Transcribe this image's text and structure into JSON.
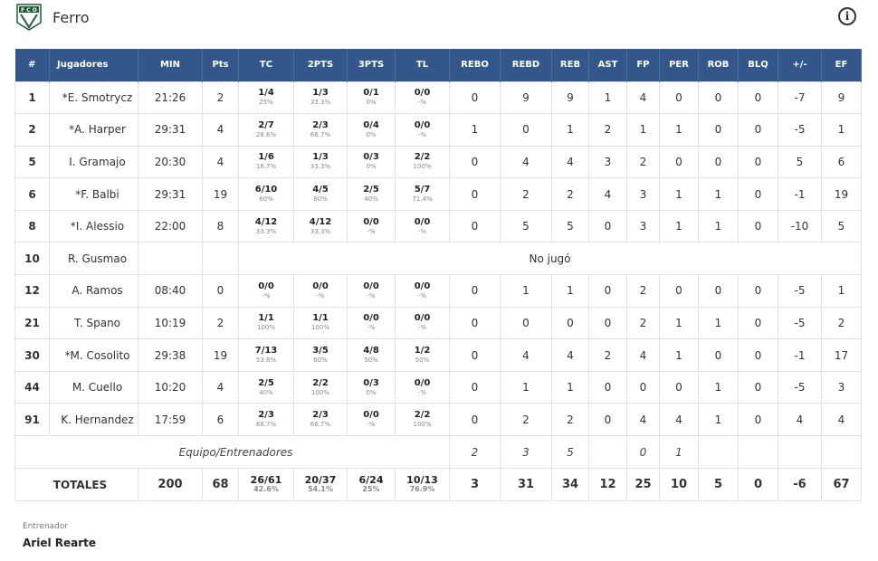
{
  "team": {
    "name": "Ferro",
    "logo_letters": "F C O",
    "colors": {
      "logo_green": "#1f5a36",
      "header_blue": "#33578a"
    }
  },
  "info_icon": "info-circle-icon",
  "columns": [
    "#",
    "Jugadores",
    "MIN",
    "Pts",
    "TC",
    "2PTS",
    "3PTS",
    "TL",
    "REBO",
    "REBD",
    "REB",
    "AST",
    "FP",
    "PER",
    "ROB",
    "BLQ",
    "+/-",
    "EF"
  ],
  "players": [
    {
      "num": "1",
      "name": "*E. Smotrycz",
      "min": "21:26",
      "pts": "2",
      "tc": "1/4",
      "tc_pct": "25%",
      "p2": "1/3",
      "p2_pct": "33.3%",
      "p3": "0/1",
      "p3_pct": "0%",
      "tl": "0/0",
      "tl_pct": "-%",
      "rebo": "0",
      "rebd": "9",
      "reb": "9",
      "ast": "1",
      "fp": "4",
      "per": "0",
      "rob": "0",
      "blq": "0",
      "pm": "-7",
      "ef": "9"
    },
    {
      "num": "2",
      "name": "*A. Harper",
      "min": "29:31",
      "pts": "4",
      "tc": "2/7",
      "tc_pct": "28.6%",
      "p2": "2/3",
      "p2_pct": "66.7%",
      "p3": "0/4",
      "p3_pct": "0%",
      "tl": "0/0",
      "tl_pct": "-%",
      "rebo": "1",
      "rebd": "0",
      "reb": "1",
      "ast": "2",
      "fp": "1",
      "per": "1",
      "rob": "0",
      "blq": "0",
      "pm": "-5",
      "ef": "1"
    },
    {
      "num": "5",
      "name": "I. Gramajo",
      "min": "20:30",
      "pts": "4",
      "tc": "1/6",
      "tc_pct": "16.7%",
      "p2": "1/3",
      "p2_pct": "33.3%",
      "p3": "0/3",
      "p3_pct": "0%",
      "tl": "2/2",
      "tl_pct": "100%",
      "rebo": "0",
      "rebd": "4",
      "reb": "4",
      "ast": "3",
      "fp": "2",
      "per": "0",
      "rob": "0",
      "blq": "0",
      "pm": "5",
      "ef": "6"
    },
    {
      "num": "6",
      "name": "*F. Balbi",
      "min": "29:31",
      "pts": "19",
      "tc": "6/10",
      "tc_pct": "60%",
      "p2": "4/5",
      "p2_pct": "80%",
      "p3": "2/5",
      "p3_pct": "40%",
      "tl": "5/7",
      "tl_pct": "71.4%",
      "rebo": "0",
      "rebd": "2",
      "reb": "2",
      "ast": "4",
      "fp": "3",
      "per": "1",
      "rob": "1",
      "blq": "0",
      "pm": "-1",
      "ef": "19"
    },
    {
      "num": "8",
      "name": "*I. Alessio",
      "min": "22:00",
      "pts": "8",
      "tc": "4/12",
      "tc_pct": "33.3%",
      "p2": "4/12",
      "p2_pct": "33.3%",
      "p3": "0/0",
      "p3_pct": "-%",
      "tl": "0/0",
      "tl_pct": "-%",
      "rebo": "0",
      "rebd": "5",
      "reb": "5",
      "ast": "0",
      "fp": "3",
      "per": "1",
      "rob": "1",
      "blq": "0",
      "pm": "-10",
      "ef": "5"
    },
    {
      "num": "10",
      "name": "R. Gusmao",
      "dnp": "No jugó"
    },
    {
      "num": "12",
      "name": "A. Ramos",
      "min": "08:40",
      "pts": "0",
      "tc": "0/0",
      "tc_pct": "-%",
      "p2": "0/0",
      "p2_pct": "-%",
      "p3": "0/0",
      "p3_pct": "-%",
      "tl": "0/0",
      "tl_pct": "-%",
      "rebo": "0",
      "rebd": "1",
      "reb": "1",
      "ast": "0",
      "fp": "2",
      "per": "0",
      "rob": "0",
      "blq": "0",
      "pm": "-5",
      "ef": "1"
    },
    {
      "num": "21",
      "name": "T. Spano",
      "min": "10:19",
      "pts": "2",
      "tc": "1/1",
      "tc_pct": "100%",
      "p2": "1/1",
      "p2_pct": "100%",
      "p3": "0/0",
      "p3_pct": "-%",
      "tl": "0/0",
      "tl_pct": "-%",
      "rebo": "0",
      "rebd": "0",
      "reb": "0",
      "ast": "0",
      "fp": "2",
      "per": "1",
      "rob": "1",
      "blq": "0",
      "pm": "-5",
      "ef": "2"
    },
    {
      "num": "30",
      "name": "*M. Cosolito",
      "min": "29:38",
      "pts": "19",
      "tc": "7/13",
      "tc_pct": "53.8%",
      "p2": "3/5",
      "p2_pct": "60%",
      "p3": "4/8",
      "p3_pct": "50%",
      "tl": "1/2",
      "tl_pct": "50%",
      "rebo": "0",
      "rebd": "4",
      "reb": "4",
      "ast": "2",
      "fp": "4",
      "per": "1",
      "rob": "0",
      "blq": "0",
      "pm": "-1",
      "ef": "17"
    },
    {
      "num": "44",
      "name": "M. Cuello",
      "min": "10:20",
      "pts": "4",
      "tc": "2/5",
      "tc_pct": "40%",
      "p2": "2/2",
      "p2_pct": "100%",
      "p3": "0/3",
      "p3_pct": "0%",
      "tl": "0/0",
      "tl_pct": "-%",
      "rebo": "0",
      "rebd": "1",
      "reb": "1",
      "ast": "0",
      "fp": "0",
      "per": "0",
      "rob": "1",
      "blq": "0",
      "pm": "-5",
      "ef": "3"
    },
    {
      "num": "91",
      "name": "K. Hernandez",
      "min": "17:59",
      "pts": "6",
      "tc": "2/3",
      "tc_pct": "66.7%",
      "p2": "2/3",
      "p2_pct": "66.7%",
      "p3": "0/0",
      "p3_pct": "-%",
      "tl": "2/2",
      "tl_pct": "100%",
      "rebo": "0",
      "rebd": "2",
      "reb": "2",
      "ast": "0",
      "fp": "4",
      "per": "4",
      "rob": "1",
      "blq": "0",
      "pm": "4",
      "ef": "4"
    }
  ],
  "team_row": {
    "label": "Equipo/Entrenadores",
    "rebo": "2",
    "rebd": "3",
    "reb": "5",
    "fp": "0",
    "per": "1"
  },
  "totals": {
    "label": "TOTALES",
    "min": "200",
    "pts": "68",
    "tc": "26/61",
    "tc_pct": "42.6%",
    "p2": "20/37",
    "p2_pct": "54.1%",
    "p3": "6/24",
    "p3_pct": "25%",
    "tl": "10/13",
    "tl_pct": "76.9%",
    "rebo": "3",
    "rebd": "31",
    "reb": "34",
    "ast": "12",
    "fp": "25",
    "per": "10",
    "rob": "5",
    "blq": "0",
    "pm": "-6",
    "ef": "67"
  },
  "coach": {
    "label": "Entrenador",
    "name": "Ariel Rearte"
  }
}
